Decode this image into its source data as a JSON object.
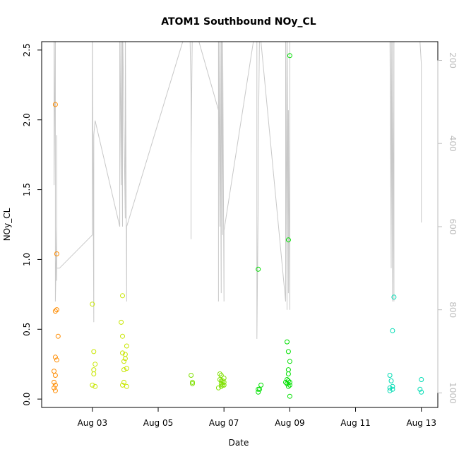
{
  "chart_data": {
    "type": "scatter",
    "title": "ATOM1 Southbound NOy_CL",
    "xlabel": "Date",
    "ylabel": "NOy_CL",
    "x_ticks": [
      {
        "date": "2016-08-03",
        "label": "Aug 03"
      },
      {
        "date": "2016-08-05",
        "label": "Aug 05"
      },
      {
        "date": "2016-08-07",
        "label": "Aug 07"
      },
      {
        "date": "2016-08-09",
        "label": "Aug 09"
      },
      {
        "date": "2016-08-11",
        "label": "Aug 11"
      },
      {
        "date": "2016-08-13",
        "label": "Aug 13"
      }
    ],
    "xlim": [
      "2016-08-01T11:00",
      "2016-08-13T12:00"
    ],
    "ylim": [
      -0.06,
      2.56
    ],
    "y_ticks": [
      "0.0",
      "0.5",
      "1.0",
      "1.5",
      "2.0",
      "2.5"
    ],
    "y2_label": "",
    "y2_ticks": [
      "200",
      "400",
      "600",
      "800",
      "1000"
    ],
    "y2_lim": [
      1035,
      155
    ],
    "y2_reversed": true,
    "series": [
      {
        "color": "#ff8c00",
        "points": [
          [
            "2016-08-01T21:00",
            2.11
          ],
          [
            "2016-08-01T22:00",
            1.04
          ],
          [
            "2016-08-01T21:00",
            0.63
          ],
          [
            "2016-08-01T22:00",
            0.64
          ],
          [
            "2016-08-01T23:00",
            0.45
          ],
          [
            "2016-08-01T21:00",
            0.3
          ],
          [
            "2016-08-01T22:00",
            0.28
          ],
          [
            "2016-08-01T20:00",
            0.2
          ],
          [
            "2016-08-01T21:00",
            0.17
          ],
          [
            "2016-08-01T20:00",
            0.12
          ],
          [
            "2016-08-01T21:00",
            0.1
          ],
          [
            "2016-08-01T20:00",
            0.08
          ],
          [
            "2016-08-01T21:00",
            0.06
          ]
        ]
      },
      {
        "color": "#c8e600",
        "points": [
          [
            "2016-08-03T00:00",
            0.68
          ],
          [
            "2016-08-03T01:00",
            0.34
          ],
          [
            "2016-08-03T02:00",
            0.25
          ],
          [
            "2016-08-03T01:00",
            0.21
          ],
          [
            "2016-08-03T01:00",
            0.18
          ],
          [
            "2016-08-03T00:00",
            0.1
          ],
          [
            "2016-08-03T02:00",
            0.09
          ],
          [
            "2016-08-03T22:00",
            0.74
          ],
          [
            "2016-08-03T21:00",
            0.55
          ],
          [
            "2016-08-03T22:00",
            0.45
          ],
          [
            "2016-08-04T01:00",
            0.38
          ],
          [
            "2016-08-03T22:00",
            0.33
          ],
          [
            "2016-08-04T00:00",
            0.32
          ],
          [
            "2016-08-04T00:00",
            0.29
          ],
          [
            "2016-08-03T23:00",
            0.27
          ],
          [
            "2016-08-04T01:00",
            0.22
          ],
          [
            "2016-08-03T23:00",
            0.21
          ],
          [
            "2016-08-03T23:00",
            0.12
          ],
          [
            "2016-08-03T22:00",
            0.1
          ],
          [
            "2016-08-04T01:00",
            0.09
          ]
        ]
      },
      {
        "color": "#7fe000",
        "points": [
          [
            "2016-08-06T00:00",
            0.17
          ],
          [
            "2016-08-06T01:00",
            0.12
          ],
          [
            "2016-08-06T01:00",
            0.11
          ],
          [
            "2016-08-06T21:00",
            0.18
          ],
          [
            "2016-08-06T22:00",
            0.17
          ],
          [
            "2016-08-07T00:00",
            0.15
          ],
          [
            "2016-08-06T21:00",
            0.14
          ],
          [
            "2016-08-06T22:00",
            0.13
          ],
          [
            "2016-08-06T23:00",
            0.13
          ],
          [
            "2016-08-07T00:00",
            0.12
          ],
          [
            "2016-08-06T22:00",
            0.11
          ],
          [
            "2016-08-06T23:00",
            0.1
          ],
          [
            "2016-08-07T00:00",
            0.1
          ],
          [
            "2016-08-06T22:00",
            0.09
          ],
          [
            "2016-08-06T20:00",
            0.08
          ]
        ]
      },
      {
        "color": "#00e000",
        "points": [
          [
            "2016-08-08T01:00",
            0.93
          ],
          [
            "2016-08-08T03:00",
            0.1
          ],
          [
            "2016-08-08T01:00",
            0.07
          ],
          [
            "2016-08-08T02:00",
            0.07
          ],
          [
            "2016-08-08T01:00",
            0.05
          ],
          [
            "2016-08-09T00:00",
            2.46
          ],
          [
            "2016-08-08T23:00",
            1.14
          ],
          [
            "2016-08-08T22:00",
            0.41
          ],
          [
            "2016-08-08T23:00",
            0.34
          ],
          [
            "2016-08-09T00:00",
            0.27
          ],
          [
            "2016-08-08T23:00",
            0.21
          ],
          [
            "2016-08-08T23:00",
            0.18
          ],
          [
            "2016-08-08T22:00",
            0.14
          ],
          [
            "2016-08-08T23:00",
            0.13
          ],
          [
            "2016-08-09T00:00",
            0.12
          ],
          [
            "2016-08-08T21:00",
            0.12
          ],
          [
            "2016-08-08T22:00",
            0.11
          ],
          [
            "2016-08-09T00:00",
            0.1
          ],
          [
            "2016-08-08T23:00",
            0.09
          ],
          [
            "2016-08-09T00:00",
            0.02
          ]
        ]
      },
      {
        "color": "#00dcb4",
        "points": [
          [
            "2016-08-12T04:00",
            0.73
          ],
          [
            "2016-08-12T03:00",
            0.49
          ],
          [
            "2016-08-12T01:00",
            0.17
          ],
          [
            "2016-08-12T02:00",
            0.13
          ],
          [
            "2016-08-12T03:00",
            0.09
          ],
          [
            "2016-08-12T01:00",
            0.08
          ],
          [
            "2016-08-12T03:00",
            0.07
          ],
          [
            "2016-08-12T01:00",
            0.06
          ],
          [
            "2016-08-13T00:00",
            0.14
          ],
          [
            "2016-08-12T23:00",
            0.07
          ],
          [
            "2016-08-13T00:00",
            0.05
          ]
        ]
      }
    ],
    "pressure_track": {
      "color": "#c8c8c8",
      "points": [
        [
          "2016-08-01T20:00",
          100
        ],
        [
          "2016-08-01T20:00",
          500
        ],
        [
          "2016-08-01T21:00",
          100
        ],
        [
          "2016-08-01T21:00",
          780
        ],
        [
          "2016-08-01T22:00",
          600
        ],
        [
          "2016-08-01T22:00",
          730
        ],
        [
          "2016-08-01T22:00",
          380
        ],
        [
          "2016-08-01T22:00",
          700
        ],
        [
          "2016-08-02T00:00",
          700
        ],
        [
          "2016-08-02T00:00",
          700
        ],
        [
          "2016-08-03T00:00",
          620
        ],
        [
          "2016-08-03T00:00",
          100
        ],
        [
          "2016-08-03T01:00",
          830
        ],
        [
          "2016-08-03T01:00",
          380
        ],
        [
          "2016-08-03T02:00",
          345
        ],
        [
          "2016-08-03T20:00",
          600
        ],
        [
          "2016-08-03T20:00",
          100
        ],
        [
          "2016-08-03T21:00",
          500
        ],
        [
          "2016-08-03T21:00",
          100
        ],
        [
          "2016-08-03T22:00",
          600
        ],
        [
          "2016-08-03T22:00",
          100
        ],
        [
          "2016-08-04T00:00",
          580
        ],
        [
          "2016-08-04T00:00",
          100
        ],
        [
          "2016-08-04T01:00",
          780
        ],
        [
          "2016-08-04T01:00",
          600
        ],
        [
          "2016-08-05T23:00",
          100
        ],
        [
          "2016-08-06T00:00",
          280
        ],
        [
          "2016-08-06T00:00",
          630
        ],
        [
          "2016-08-06T00:00",
          430
        ],
        [
          "2016-08-06T01:00",
          100
        ],
        [
          "2016-08-06T20:00",
          320
        ],
        [
          "2016-08-06T20:00",
          780
        ],
        [
          "2016-08-06T20:00",
          100
        ],
        [
          "2016-08-06T21:00",
          600
        ],
        [
          "2016-08-06T21:00",
          100
        ],
        [
          "2016-08-06T22:00",
          760
        ],
        [
          "2016-08-06T22:00",
          100
        ],
        [
          "2016-08-06T23:00",
          620
        ],
        [
          "2016-08-06T23:00",
          100
        ],
        [
          "2016-08-07T00:00",
          780
        ],
        [
          "2016-08-07T00:00",
          610
        ],
        [
          "2016-08-08T00:00",
          100
        ],
        [
          "2016-08-08T00:00",
          870
        ],
        [
          "2016-08-08T01:00",
          530
        ],
        [
          "2016-08-08T01:00",
          420
        ],
        [
          "2016-08-08T02:00",
          120
        ],
        [
          "2016-08-08T21:00",
          780
        ],
        [
          "2016-08-08T21:00",
          100
        ],
        [
          "2016-08-08T22:00",
          800
        ],
        [
          "2016-08-08T22:00",
          100
        ],
        [
          "2016-08-08T23:00",
          760
        ],
        [
          "2016-08-08T23:00",
          320
        ],
        [
          "2016-08-09T00:00",
          800
        ],
        [
          "2016-08-09T00:00",
          100
        ],
        [
          "2016-08-12T01:00",
          100
        ],
        [
          "2016-08-12T02:00",
          700
        ],
        [
          "2016-08-12T02:00",
          100
        ],
        [
          "2016-08-12T03:00",
          780
        ],
        [
          "2016-08-12T03:00",
          100
        ],
        [
          "2016-08-12T04:00",
          780
        ],
        [
          "2016-08-12T04:00",
          120
        ],
        [
          "2016-08-12T22:00",
          100
        ],
        [
          "2016-08-13T00:00",
          210
        ],
        [
          "2016-08-13T00:00",
          590
        ]
      ]
    }
  }
}
